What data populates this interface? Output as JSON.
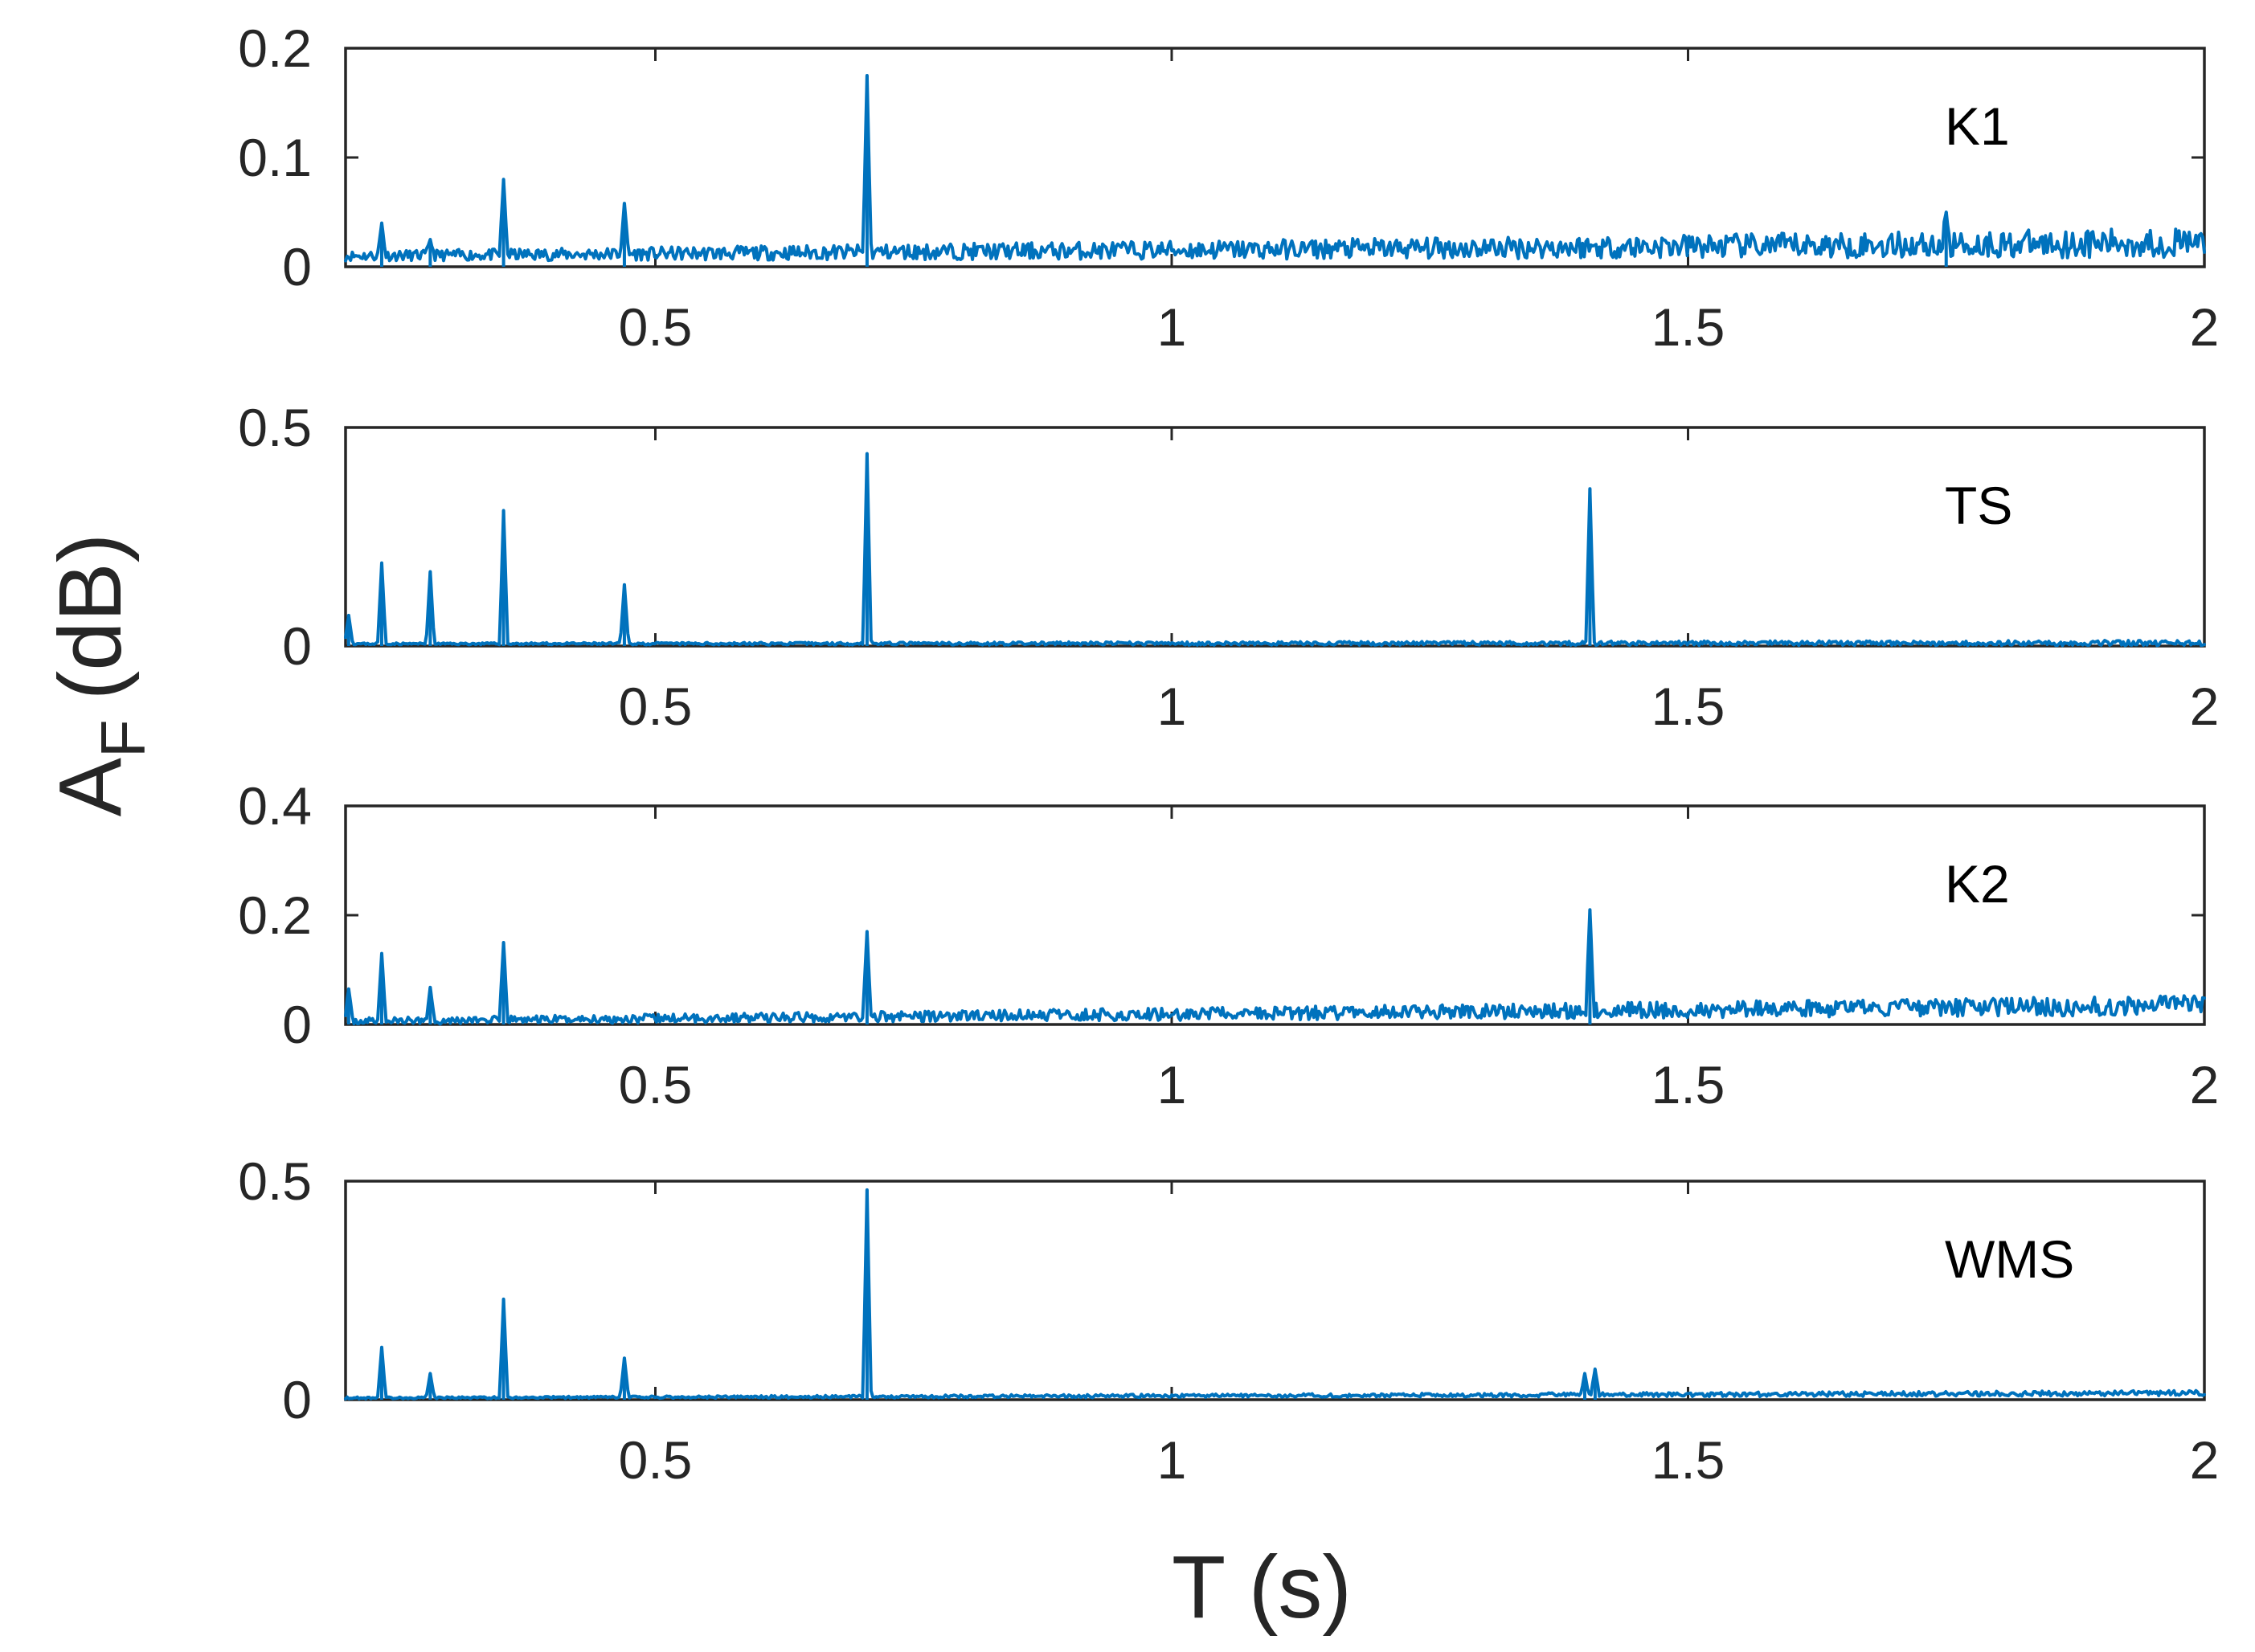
{
  "chart_data": {
    "type": "line",
    "title": "",
    "xlabel": "T (s)",
    "ylabel": {
      "base": "A",
      "subscript": "F",
      "unit": "(dB)"
    },
    "xlim": [
      0.2,
      2.0
    ],
    "xticks": [
      0.5,
      1,
      1.5,
      2
    ],
    "xtick_labels": [
      "0.5",
      "1",
      "1.5",
      "2"
    ],
    "line_color": "#0072BD",
    "panels": [
      {
        "name": "K1",
        "ylim": [
          0,
          0.2
        ],
        "yticks": [
          0,
          0.1,
          0.2
        ],
        "ytick_labels": [
          "0",
          "0.1",
          "0.2"
        ],
        "series": {
          "name": "K1",
          "baseline_start": 0.01,
          "baseline_end": 0.022,
          "noise": 0.009,
          "seed": 11
        },
        "peaks": [
          {
            "x": 0.235,
            "y": 0.04
          },
          {
            "x": 0.282,
            "y": 0.025
          },
          {
            "x": 0.353,
            "y": 0.08
          },
          {
            "x": 0.47,
            "y": 0.058
          },
          {
            "x": 0.705,
            "y": 0.175
          },
          {
            "x": 1.75,
            "y": 0.05
          }
        ]
      },
      {
        "name": "TS",
        "ylim": [
          0,
          0.5
        ],
        "yticks": [
          0,
          0.5
        ],
        "ytick_labels": [
          "0",
          "0.5"
        ],
        "series": {
          "name": "TS",
          "baseline_start": 0.005,
          "baseline_end": 0.007,
          "noise": 0.004,
          "seed": 23
        },
        "peaks": [
          {
            "x": 0.203,
            "y": 0.07
          },
          {
            "x": 0.235,
            "y": 0.19
          },
          {
            "x": 0.282,
            "y": 0.17
          },
          {
            "x": 0.353,
            "y": 0.31
          },
          {
            "x": 0.47,
            "y": 0.14
          },
          {
            "x": 0.705,
            "y": 0.44
          },
          {
            "x": 1.405,
            "y": 0.36
          }
        ]
      },
      {
        "name": "K2",
        "ylim": [
          0,
          0.4
        ],
        "yticks": [
          0,
          0.2,
          0.4
        ],
        "ytick_labels": [
          "0",
          "0.2",
          "0.4"
        ],
        "series": {
          "name": "K2",
          "baseline_start": 0.006,
          "baseline_end": 0.035,
          "noise": 0.012,
          "seed": 37
        },
        "peaks": [
          {
            "x": 0.203,
            "y": 0.065
          },
          {
            "x": 0.235,
            "y": 0.13
          },
          {
            "x": 0.282,
            "y": 0.068
          },
          {
            "x": 0.353,
            "y": 0.15
          },
          {
            "x": 0.705,
            "y": 0.17
          },
          {
            "x": 1.405,
            "y": 0.21
          }
        ]
      },
      {
        "name": "WMS",
        "ylim": [
          0,
          0.5
        ],
        "yticks": [
          0,
          0.5
        ],
        "ytick_labels": [
          "0",
          "0.5"
        ],
        "series": {
          "name": "WMS",
          "baseline_start": 0.004,
          "baseline_end": 0.015,
          "noise": 0.004,
          "seed": 53
        },
        "peaks": [
          {
            "x": 0.235,
            "y": 0.12
          },
          {
            "x": 0.282,
            "y": 0.06
          },
          {
            "x": 0.353,
            "y": 0.23
          },
          {
            "x": 0.47,
            "y": 0.095
          },
          {
            "x": 0.705,
            "y": 0.48
          },
          {
            "x": 1.4,
            "y": 0.06
          },
          {
            "x": 1.41,
            "y": 0.07
          }
        ]
      }
    ]
  }
}
